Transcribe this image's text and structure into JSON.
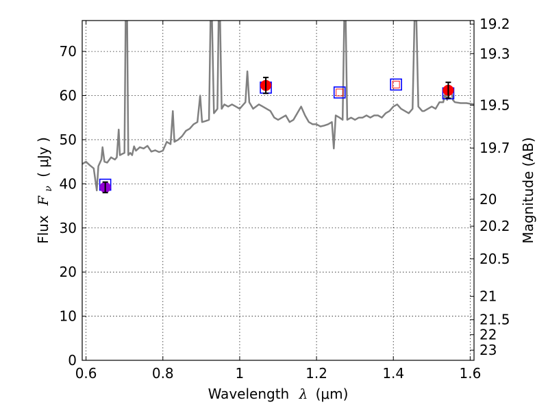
{
  "chart_data": {
    "type": "scatter",
    "xlabel_text": "Wavelength",
    "xlabel_symbol": "λ",
    "xlabel_unit": "(μm)",
    "ylabel_text": "Flux",
    "ylabel_symbol": "F",
    "ylabel_subscript": "ν",
    "ylabel_unit": "( μJy )",
    "y2label": "Magnitude (AB)",
    "xlim": [
      0.59,
      1.61
    ],
    "ylim": [
      0,
      77
    ],
    "x_ticks": [
      0.6,
      0.8,
      1.0,
      1.2,
      1.4,
      1.6
    ],
    "x_tick_labels": [
      "0.6",
      "0.8",
      "1",
      "1.2",
      "1.4",
      "1.6"
    ],
    "y_ticks": [
      0,
      10,
      20,
      30,
      40,
      50,
      60,
      70
    ],
    "y_tick_labels": [
      "0",
      "10",
      "20",
      "30",
      "40",
      "50",
      "60",
      "70"
    ],
    "y2_ticks": [
      {
        "label": "19.2",
        "flux": 76.2
      },
      {
        "label": "19.3",
        "flux": 69.5
      },
      {
        "label": "19.5",
        "flux": 57.8
      },
      {
        "label": "19.7",
        "flux": 48.1
      },
      {
        "label": "20",
        "flux": 36.5
      },
      {
        "label": "20.2",
        "flux": 30.4
      },
      {
        "label": "20.5",
        "flux": 23.0
      },
      {
        "label": "21",
        "flux": 14.5
      },
      {
        "label": "21.5",
        "flux": 9.2
      },
      {
        "label": "22",
        "flux": 5.8
      },
      {
        "label": "23",
        "flux": 2.3
      }
    ],
    "grid": true,
    "model_spectrum": {
      "color": "#808080",
      "points": [
        [
          0.59,
          44.5
        ],
        [
          0.6,
          45.0
        ],
        [
          0.61,
          44.2
        ],
        [
          0.62,
          43.5
        ],
        [
          0.628,
          38.5
        ],
        [
          0.632,
          44.0
        ],
        [
          0.64,
          45.5
        ],
        [
          0.643,
          48.3
        ],
        [
          0.648,
          45.0
        ],
        [
          0.655,
          44.8
        ],
        [
          0.665,
          46.0
        ],
        [
          0.675,
          45.5
        ],
        [
          0.68,
          46.0
        ],
        [
          0.685,
          52.3
        ],
        [
          0.688,
          46.5
        ],
        [
          0.695,
          46.8
        ],
        [
          0.7,
          47.0
        ],
        [
          0.703,
          77
        ],
        [
          0.707,
          77
        ],
        [
          0.71,
          46.5
        ],
        [
          0.715,
          47.0
        ],
        [
          0.72,
          46.5
        ],
        [
          0.725,
          48.5
        ],
        [
          0.73,
          47.5
        ],
        [
          0.74,
          48.3
        ],
        [
          0.75,
          48.0
        ],
        [
          0.76,
          48.6
        ],
        [
          0.77,
          47.3
        ],
        [
          0.78,
          47.6
        ],
        [
          0.79,
          47.2
        ],
        [
          0.8,
          47.5
        ],
        [
          0.81,
          49.5
        ],
        [
          0.82,
          49.0
        ],
        [
          0.826,
          56.5
        ],
        [
          0.83,
          49.5
        ],
        [
          0.84,
          50.0
        ],
        [
          0.85,
          50.8
        ],
        [
          0.86,
          52.0
        ],
        [
          0.87,
          52.5
        ],
        [
          0.88,
          53.5
        ],
        [
          0.89,
          54.0
        ],
        [
          0.897,
          60.0
        ],
        [
          0.902,
          54.0
        ],
        [
          0.91,
          54.2
        ],
        [
          0.92,
          54.5
        ],
        [
          0.924,
          77
        ],
        [
          0.928,
          77
        ],
        [
          0.933,
          56.0
        ],
        [
          0.942,
          57.0
        ],
        [
          0.945,
          77
        ],
        [
          0.949,
          77
        ],
        [
          0.953,
          57.0
        ],
        [
          0.96,
          58.0
        ],
        [
          0.97,
          57.5
        ],
        [
          0.98,
          58.0
        ],
        [
          0.99,
          57.5
        ],
        [
          1.0,
          57.0
        ],
        [
          1.015,
          58.5
        ],
        [
          1.02,
          65.5
        ],
        [
          1.025,
          58.5
        ],
        [
          1.035,
          57.0
        ],
        [
          1.05,
          58.0
        ],
        [
          1.06,
          57.5
        ],
        [
          1.07,
          57.0
        ],
        [
          1.08,
          56.5
        ],
        [
          1.09,
          55.0
        ],
        [
          1.1,
          54.5
        ],
        [
          1.11,
          55.0
        ],
        [
          1.12,
          55.5
        ],
        [
          1.13,
          54.0
        ],
        [
          1.14,
          54.5
        ],
        [
          1.15,
          56.0
        ],
        [
          1.16,
          57.5
        ],
        [
          1.17,
          55.5
        ],
        [
          1.18,
          54.0
        ],
        [
          1.19,
          53.5
        ],
        [
          1.2,
          53.5
        ],
        [
          1.21,
          53.0
        ],
        [
          1.22,
          53.2
        ],
        [
          1.23,
          53.5
        ],
        [
          1.24,
          54.0
        ],
        [
          1.245,
          48.0
        ],
        [
          1.25,
          55.5
        ],
        [
          1.26,
          55.0
        ],
        [
          1.268,
          54.5
        ],
        [
          1.272,
          77
        ],
        [
          1.276,
          77
        ],
        [
          1.28,
          54.5
        ],
        [
          1.29,
          55.0
        ],
        [
          1.3,
          54.5
        ],
        [
          1.31,
          55.0
        ],
        [
          1.32,
          55.0
        ],
        [
          1.33,
          55.5
        ],
        [
          1.34,
          55.0
        ],
        [
          1.35,
          55.5
        ],
        [
          1.36,
          55.5
        ],
        [
          1.37,
          55.0
        ],
        [
          1.38,
          56.0
        ],
        [
          1.39,
          56.5
        ],
        [
          1.4,
          57.5
        ],
        [
          1.41,
          58.0
        ],
        [
          1.42,
          57.0
        ],
        [
          1.43,
          56.5
        ],
        [
          1.44,
          56.0
        ],
        [
          1.45,
          57.0
        ],
        [
          1.455,
          77
        ],
        [
          1.46,
          77
        ],
        [
          1.465,
          57.5
        ],
        [
          1.475,
          56.5
        ],
        [
          1.48,
          56.5
        ],
        [
          1.49,
          57.0
        ],
        [
          1.5,
          57.5
        ],
        [
          1.51,
          57.0
        ],
        [
          1.52,
          58.5
        ],
        [
          1.53,
          58.5
        ],
        [
          1.535,
          60.5
        ],
        [
          1.54,
          59.0
        ],
        [
          1.545,
          60.0
        ],
        [
          1.55,
          61.5
        ],
        [
          1.555,
          59.0
        ],
        [
          1.56,
          58.5
        ],
        [
          1.575,
          58.3
        ],
        [
          1.59,
          58.3
        ],
        [
          1.61,
          58.0
        ]
      ]
    },
    "synthetic_photometry": {
      "color": "#0000ff",
      "points": [
        {
          "x": 0.65,
          "y": 39.8
        },
        {
          "x": 1.068,
          "y": 61.8
        },
        {
          "x": 1.26,
          "y": 60.7
        },
        {
          "x": 1.407,
          "y": 62.5
        },
        {
          "x": 1.543,
          "y": 60.5
        }
      ]
    },
    "observed_photometry": {
      "color": "#ff0000",
      "points": [
        {
          "x": 0.65,
          "y": 39.2,
          "yerr": 1.2,
          "color": "#9400d3"
        },
        {
          "x": 1.068,
          "y": 62.3,
          "yerr": 1.8,
          "color": "#ff0000"
        },
        {
          "x": 1.543,
          "y": 61.2,
          "yerr": 1.8,
          "color": "#ff0000"
        }
      ]
    },
    "upper_limits": {
      "color": "#ff0000",
      "points": [
        {
          "x": 1.26,
          "y": 60.7
        },
        {
          "x": 1.407,
          "y": 62.5
        }
      ]
    }
  }
}
